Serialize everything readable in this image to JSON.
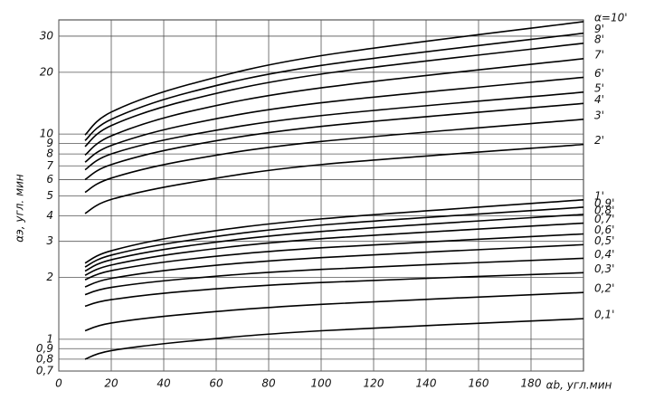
{
  "chart_data": {
    "type": "line",
    "x_label": "αb, угл.мин",
    "y_label": "αэ, угл. мин",
    "x": [
      10,
      20,
      50,
      100,
      200
    ],
    "xlim": [
      0,
      200
    ],
    "xticks": [
      0,
      20,
      40,
      60,
      80,
      100,
      120,
      140,
      160,
      180
    ],
    "ylim": [
      0.7,
      36
    ],
    "log_y": true,
    "grid": true,
    "yticks": [
      {
        "value": 0.7,
        "label": "0,7"
      },
      {
        "value": 0.8,
        "label": "0,8"
      },
      {
        "value": 0.9,
        "label": "0,9"
      },
      1,
      2,
      3,
      4,
      5,
      6,
      7,
      8,
      9,
      10,
      20,
      30
    ],
    "series": [
      {
        "name": "α=10'",
        "color": "#000000",
        "values": [
          9.9,
          12.8,
          17.5,
          24.1,
          35.3
        ]
      },
      {
        "name": "9'",
        "color": "#000000",
        "values": [
          9.3,
          11.8,
          16.0,
          21.6,
          31
        ]
      },
      {
        "name": "8'",
        "color": "#000000",
        "values": [
          8.7,
          11.0,
          14.7,
          19.6,
          27.7
        ]
      },
      {
        "name": "7'",
        "color": "#000000",
        "values": [
          7.9,
          9.8,
          12.9,
          16.8,
          23.3
        ]
      },
      {
        "name": "6'",
        "color": "#000000",
        "values": [
          7.3,
          8.8,
          11.2,
          14.2,
          18.9
        ]
      },
      {
        "name": "5'",
        "color": "#000000",
        "values": [
          6.7,
          8.0,
          9.9,
          12.3,
          16.0
        ]
      },
      {
        "name": "4'",
        "color": "#000000",
        "values": [
          6.0,
          7.1,
          8.8,
          10.9,
          14.1
        ]
      },
      {
        "name": "3'",
        "color": "#000000",
        "values": [
          5.2,
          6.1,
          7.5,
          9.2,
          11.8
        ]
      },
      {
        "name": "2'",
        "color": "#000000",
        "values": [
          4.1,
          4.8,
          5.8,
          7.1,
          8.9
        ]
      },
      {
        "name": "1'",
        "color": "#000000",
        "values": [
          2.35,
          2.7,
          3.24,
          3.86,
          4.78
        ]
      },
      {
        "name": "0,9'",
        "color": "#000000",
        "values": [
          2.25,
          2.57,
          3.04,
          3.6,
          4.4
        ]
      },
      {
        "name": "0,8'",
        "color": "#000000",
        "values": [
          2.15,
          2.44,
          2.86,
          3.35,
          4.06
        ]
      },
      {
        "name": "0,7'",
        "color": "#000000",
        "values": [
          2.05,
          2.3,
          2.67,
          3.09,
          3.68
        ]
      },
      {
        "name": "0,6'",
        "color": "#000000",
        "values": [
          1.95,
          2.16,
          2.46,
          2.79,
          3.26
        ]
      },
      {
        "name": "0,5'",
        "color": "#000000",
        "values": [
          1.8,
          1.98,
          2.23,
          2.5,
          2.89
        ]
      },
      {
        "name": "0,4'",
        "color": "#000000",
        "values": [
          1.65,
          1.79,
          1.98,
          2.19,
          2.48
        ]
      },
      {
        "name": "0,3'",
        "color": "#000000",
        "values": [
          1.45,
          1.56,
          1.72,
          1.89,
          2.11
        ]
      },
      {
        "name": "0,2'",
        "color": "#000000",
        "values": [
          1.1,
          1.2,
          1.33,
          1.48,
          1.69
        ]
      },
      {
        "name": "0,1'",
        "color": "#000000",
        "values": [
          0.8,
          0.88,
          0.98,
          1.1,
          1.26
        ]
      }
    ]
  }
}
